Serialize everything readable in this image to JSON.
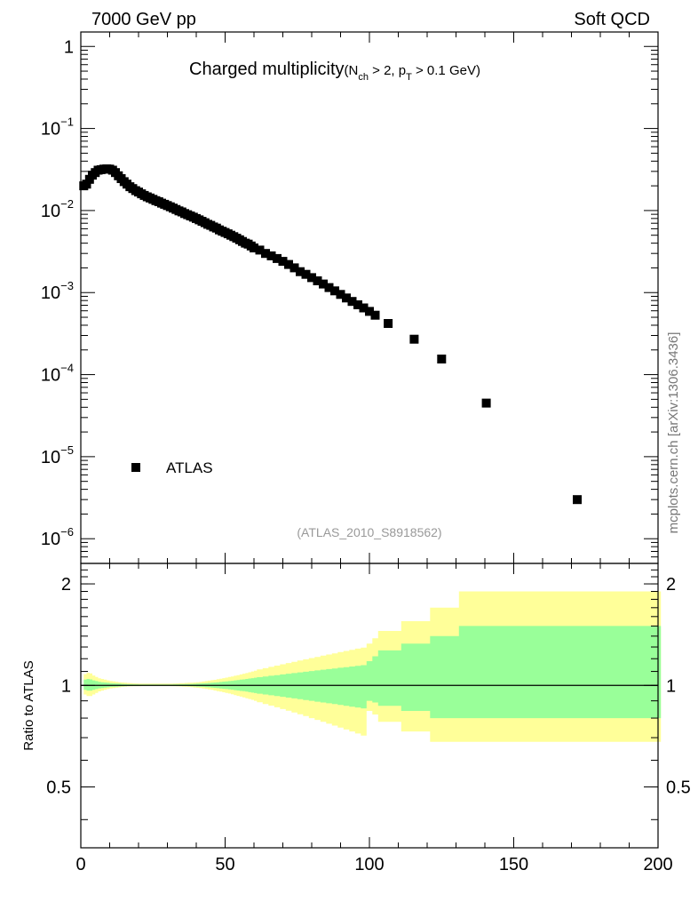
{
  "header": {
    "energy_label": "7000 GeV pp",
    "category_label": "Soft QCD",
    "side_label": "mcplots.cern.ch [arXiv:1306.3436]",
    "analysis_label": "(ATLAS_2010_S8918562)"
  },
  "chart_data": [
    {
      "type": "scatter",
      "title_main": "Charged multiplicity",
      "title_sub_parts": [
        "(N",
        "ch",
        " > 2, p",
        "T",
        " > 0.1 GeV)"
      ],
      "x_scale": "linear",
      "y_scale": "log",
      "xlim": [
        0,
        200
      ],
      "ylim": [
        5e-07,
        1.5
      ],
      "legend": {
        "placement": "bottom-left",
        "entries": [
          {
            "name": "ATLAS",
            "marker": "square",
            "color": "#000000"
          }
        ]
      },
      "y_ticks": [
        {
          "value": 1,
          "base": "1",
          "exp": ""
        },
        {
          "value": 0.1,
          "base": "10",
          "exp": "−1"
        },
        {
          "value": 0.01,
          "base": "10",
          "exp": "−2"
        },
        {
          "value": 0.001,
          "base": "10",
          "exp": "−3"
        },
        {
          "value": 0.0001,
          "base": "10",
          "exp": "−4"
        },
        {
          "value": 1e-05,
          "base": "10",
          "exp": "−5"
        },
        {
          "value": 1e-06,
          "base": "10",
          "exp": "−6"
        }
      ],
      "series": [
        {
          "name": "ATLAS",
          "x": [
            1,
            2,
            3,
            4,
            5,
            6,
            7,
            8,
            9,
            10,
            11,
            12,
            13,
            14,
            15,
            16,
            17,
            18,
            19,
            20,
            21,
            22,
            23,
            24,
            25,
            26,
            27,
            28,
            29,
            30,
            31,
            32,
            33,
            34,
            35,
            36,
            37,
            38,
            39,
            40,
            41,
            42,
            43,
            44,
            45,
            46,
            47,
            48,
            49,
            50,
            51,
            52,
            53,
            54,
            55,
            56,
            57,
            58,
            59,
            60,
            62,
            64,
            66,
            68,
            70,
            72,
            74,
            76,
            78,
            80,
            82,
            84,
            86,
            88,
            90,
            92,
            94,
            96,
            98,
            100,
            102,
            106.5,
            115.5,
            125,
            140.5,
            172
          ],
          "y": [
            0.02,
            0.021,
            0.024,
            0.027,
            0.029,
            0.031,
            0.0315,
            0.032,
            0.0322,
            0.032,
            0.031,
            0.029,
            0.0265,
            0.0245,
            0.0225,
            0.021,
            0.0195,
            0.0185,
            0.0175,
            0.0168,
            0.016,
            0.0153,
            0.0147,
            0.0142,
            0.0137,
            0.0132,
            0.0128,
            0.0123,
            0.0119,
            0.0115,
            0.0111,
            0.0107,
            0.0103,
            0.0099,
            0.0096,
            0.0092,
            0.0089,
            0.0086,
            0.0083,
            0.008,
            0.0077,
            0.0074,
            0.0071,
            0.0068,
            0.0066,
            0.0063,
            0.0061,
            0.0058,
            0.0056,
            0.0054,
            0.0052,
            0.005,
            0.0048,
            0.0046,
            0.0044,
            0.0042,
            0.004,
            0.0039,
            0.0037,
            0.0035,
            0.0033,
            0.003,
            0.0028,
            0.0026,
            0.0024,
            0.0022,
            0.002,
            0.0018,
            0.00167,
            0.00152,
            0.00139,
            0.00127,
            0.00115,
            0.00105,
            0.00095,
            0.00086,
            0.00078,
            0.00071,
            0.00065,
            0.00059,
            0.00053,
            0.00042,
            0.00027,
            0.000155,
            4.5e-05,
            3e-06
          ]
        }
      ]
    },
    {
      "type": "area",
      "ylabel": "Ratio to ATLAS",
      "x_scale": "linear",
      "y_scale": "log",
      "xlim": [
        0,
        200
      ],
      "ylim": [
        0.33,
        2.3
      ],
      "x_ticks": [
        0,
        50,
        100,
        150,
        200
      ],
      "y_ticks": [
        {
          "value": 2,
          "label": "2"
        },
        {
          "value": 1,
          "label": "1"
        },
        {
          "value": 0.5,
          "label": "0.5"
        }
      ],
      "reference_line": 1,
      "bands": [
        {
          "name": "outer",
          "color": "#ffff99",
          "edges": [
            1,
            2,
            3,
            4,
            5,
            6,
            7,
            8,
            9,
            10,
            11,
            12,
            13,
            14,
            15,
            16,
            17,
            18,
            19,
            20,
            21,
            22,
            23,
            24,
            25,
            26,
            27,
            28,
            29,
            30,
            31,
            32,
            33,
            34,
            35,
            36,
            37,
            38,
            39,
            40,
            41,
            42,
            43,
            44,
            45,
            46,
            47,
            48,
            49,
            50,
            51,
            52,
            53,
            54,
            55,
            56,
            57,
            58,
            59,
            60,
            61,
            63,
            65,
            67,
            69,
            71,
            73,
            75,
            77,
            79,
            81,
            83,
            85,
            87,
            89,
            91,
            93,
            95,
            97,
            99,
            101,
            103,
            111,
            121,
            131,
            161,
            201
          ],
          "lower": [
            0.94,
            0.93,
            0.93,
            0.94,
            0.95,
            0.96,
            0.965,
            0.97,
            0.975,
            0.98,
            0.982,
            0.985,
            0.987,
            0.99,
            0.992,
            0.993,
            0.994,
            0.995,
            0.995,
            0.995,
            0.996,
            0.996,
            0.996,
            0.996,
            0.996,
            0.996,
            0.996,
            0.996,
            0.996,
            0.996,
            0.995,
            0.995,
            0.994,
            0.993,
            0.992,
            0.991,
            0.99,
            0.988,
            0.986,
            0.984,
            0.982,
            0.979,
            0.976,
            0.973,
            0.97,
            0.966,
            0.962,
            0.958,
            0.954,
            0.95,
            0.946,
            0.941,
            0.936,
            0.931,
            0.926,
            0.921,
            0.916,
            0.911,
            0.906,
            0.9,
            0.891,
            0.881,
            0.871,
            0.861,
            0.851,
            0.841,
            0.831,
            0.821,
            0.811,
            0.8,
            0.79,
            0.78,
            0.77,
            0.76,
            0.75,
            0.74,
            0.73,
            0.72,
            0.71,
            0.84,
            0.82,
            0.78,
            0.73,
            0.68,
            0.68,
            0.68
          ],
          "upper": [
            1.08,
            1.09,
            1.085,
            1.07,
            1.06,
            1.05,
            1.045,
            1.04,
            1.035,
            1.03,
            1.028,
            1.025,
            1.022,
            1.02,
            1.018,
            1.017,
            1.015,
            1.014,
            1.013,
            1.012,
            1.012,
            1.012,
            1.012,
            1.012,
            1.012,
            1.012,
            1.012,
            1.012,
            1.012,
            1.012,
            1.012,
            1.013,
            1.014,
            1.015,
            1.016,
            1.017,
            1.018,
            1.019,
            1.02,
            1.022,
            1.024,
            1.027,
            1.03,
            1.033,
            1.036,
            1.039,
            1.043,
            1.047,
            1.051,
            1.055,
            1.059,
            1.063,
            1.068,
            1.073,
            1.078,
            1.083,
            1.088,
            1.094,
            1.1,
            1.106,
            1.115,
            1.125,
            1.135,
            1.145,
            1.155,
            1.165,
            1.175,
            1.185,
            1.195,
            1.205,
            1.215,
            1.225,
            1.235,
            1.245,
            1.255,
            1.265,
            1.275,
            1.285,
            1.295,
            1.33,
            1.38,
            1.45,
            1.55,
            1.7,
            1.9,
            1.9
          ]
        },
        {
          "name": "inner",
          "color": "#99ff99",
          "edges": [
            1,
            2,
            3,
            4,
            5,
            6,
            7,
            8,
            9,
            10,
            11,
            12,
            13,
            14,
            15,
            16,
            17,
            18,
            19,
            20,
            21,
            22,
            23,
            24,
            25,
            26,
            27,
            28,
            29,
            30,
            31,
            32,
            33,
            34,
            35,
            36,
            37,
            38,
            39,
            40,
            41,
            42,
            43,
            44,
            45,
            46,
            47,
            48,
            49,
            50,
            51,
            52,
            53,
            54,
            55,
            56,
            57,
            58,
            59,
            60,
            61,
            63,
            65,
            67,
            69,
            71,
            73,
            75,
            77,
            79,
            81,
            83,
            85,
            87,
            89,
            91,
            93,
            95,
            97,
            99,
            101,
            103,
            111,
            121,
            131,
            161,
            201
          ],
          "lower": [
            0.97,
            0.965,
            0.965,
            0.97,
            0.975,
            0.98,
            0.982,
            0.985,
            0.987,
            0.99,
            0.991,
            0.992,
            0.993,
            0.994,
            0.995,
            0.996,
            0.997,
            0.997,
            0.997,
            0.997,
            0.998,
            0.998,
            0.998,
            0.998,
            0.998,
            0.998,
            0.998,
            0.998,
            0.998,
            0.998,
            0.998,
            0.998,
            0.997,
            0.997,
            0.996,
            0.996,
            0.995,
            0.994,
            0.993,
            0.992,
            0.991,
            0.99,
            0.988,
            0.987,
            0.985,
            0.983,
            0.981,
            0.979,
            0.977,
            0.975,
            0.973,
            0.971,
            0.968,
            0.966,
            0.963,
            0.961,
            0.958,
            0.955,
            0.952,
            0.949,
            0.945,
            0.94,
            0.935,
            0.93,
            0.925,
            0.92,
            0.915,
            0.91,
            0.905,
            0.9,
            0.895,
            0.89,
            0.885,
            0.88,
            0.875,
            0.87,
            0.865,
            0.86,
            0.855,
            0.9,
            0.89,
            0.87,
            0.84,
            0.8,
            0.8,
            0.8
          ],
          "upper": [
            1.04,
            1.045,
            1.042,
            1.035,
            1.03,
            1.025,
            1.022,
            1.02,
            1.018,
            1.015,
            1.014,
            1.013,
            1.012,
            1.01,
            1.009,
            1.008,
            1.008,
            1.007,
            1.007,
            1.006,
            1.006,
            1.006,
            1.006,
            1.006,
            1.006,
            1.006,
            1.006,
            1.006,
            1.006,
            1.006,
            1.006,
            1.007,
            1.007,
            1.008,
            1.008,
            1.009,
            1.009,
            1.01,
            1.011,
            1.012,
            1.013,
            1.014,
            1.016,
            1.017,
            1.019,
            1.02,
            1.022,
            1.024,
            1.026,
            1.028,
            1.03,
            1.032,
            1.035,
            1.037,
            1.04,
            1.042,
            1.045,
            1.048,
            1.051,
            1.054,
            1.058,
            1.063,
            1.068,
            1.073,
            1.078,
            1.083,
            1.088,
            1.093,
            1.098,
            1.103,
            1.108,
            1.113,
            1.118,
            1.123,
            1.128,
            1.133,
            1.138,
            1.143,
            1.148,
            1.18,
            1.22,
            1.27,
            1.33,
            1.4,
            1.5,
            1.5
          ]
        }
      ]
    }
  ]
}
